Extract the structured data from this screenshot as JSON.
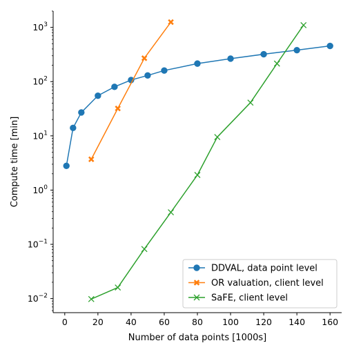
{
  "chart_data": {
    "type": "line",
    "title": "",
    "xlabel": "Number of data points [1000s]",
    "ylabel": "Compute time [min]",
    "xlim": [
      -7,
      167
    ],
    "ylim": [
      0.0055,
      2000
    ],
    "y_scale": "log",
    "grid": false,
    "legend_position": "lower-right",
    "x_ticks": [
      0,
      20,
      40,
      60,
      80,
      100,
      120,
      140,
      160
    ],
    "x_tick_labels": [
      "0",
      "20",
      "40",
      "60",
      "80",
      "100",
      "120",
      "140",
      "160"
    ],
    "y_ticks": [
      0.01,
      0.1,
      1,
      10,
      100,
      1000
    ],
    "y_tick_labels": [
      {
        "base": "10",
        "exp": "−2"
      },
      {
        "base": "10",
        "exp": "−1"
      },
      {
        "base": "10",
        "exp": "0"
      },
      {
        "base": "10",
        "exp": "1"
      },
      {
        "base": "10",
        "exp": "2"
      },
      {
        "base": "10",
        "exp": "3"
      }
    ],
    "series": [
      {
        "name": "DDVAL, data point level",
        "color": "#1f77b4",
        "marker": "circle",
        "x": [
          1,
          5,
          10,
          20,
          30,
          40,
          50,
          60,
          80,
          100,
          120,
          140,
          160
        ],
        "y": [
          2.8,
          14,
          27,
          55,
          80,
          107,
          130,
          160,
          215,
          265,
          320,
          380,
          455
        ]
      },
      {
        "name": "OR valuation, client level",
        "color": "#ff7f0e",
        "marker": "x-filled",
        "x": [
          16,
          32,
          48,
          64
        ],
        "y": [
          3.7,
          32,
          270,
          1250
        ]
      },
      {
        "name": "SaFE, client level",
        "color": "#2ca02c",
        "marker": "x",
        "x": [
          16,
          32,
          48,
          64,
          80,
          92,
          112,
          128,
          144
        ],
        "y": [
          0.0098,
          0.016,
          0.082,
          0.39,
          1.9,
          9.5,
          41,
          215,
          1100
        ]
      }
    ]
  }
}
